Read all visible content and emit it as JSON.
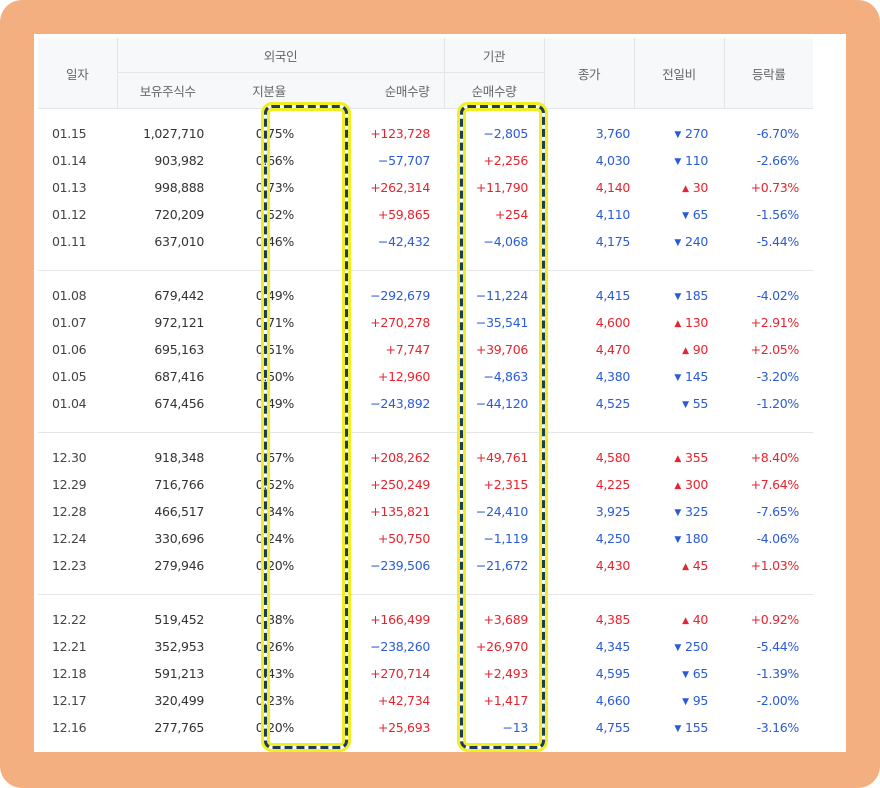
{
  "header": {
    "date": "일자",
    "foreign": "외국인",
    "institution": "기관",
    "close": "종가",
    "change": "전일비",
    "rate": "등락률",
    "holdings": "보유주식수",
    "share": "지분율",
    "foreign_net": "순매수량",
    "inst_net": "순매수량"
  },
  "colors": {
    "up": "#e8232d",
    "down": "#2a5bd7",
    "highlight_border": "#1c3d5a",
    "highlight_glow": "#f1ee24",
    "frame": "#f4af80"
  },
  "groups": [
    {
      "rows": [
        {
          "date": "01.15",
          "holdings": "1,027,710",
          "share": "0.75%",
          "foreign": "+123,728",
          "inst": "−2,805",
          "close": "3,760",
          "dir": "down",
          "change": "270",
          "rate": "-6.70%"
        },
        {
          "date": "01.14",
          "holdings": "903,982",
          "share": "0.66%",
          "foreign": "−57,707",
          "inst": "+2,256",
          "close": "4,030",
          "dir": "down",
          "change": "110",
          "rate": "-2.66%"
        },
        {
          "date": "01.13",
          "holdings": "998,888",
          "share": "0.73%",
          "foreign": "+262,314",
          "inst": "+11,790",
          "close": "4,140",
          "dir": "up",
          "change": "30",
          "rate": "+0.73%"
        },
        {
          "date": "01.12",
          "holdings": "720,209",
          "share": "0.52%",
          "foreign": "+59,865",
          "inst": "+254",
          "close": "4,110",
          "dir": "down",
          "change": "65",
          "rate": "-1.56%"
        },
        {
          "date": "01.11",
          "holdings": "637,010",
          "share": "0.46%",
          "foreign": "−42,432",
          "inst": "−4,068",
          "close": "4,175",
          "dir": "down",
          "change": "240",
          "rate": "-5.44%"
        }
      ]
    },
    {
      "rows": [
        {
          "date": "01.08",
          "holdings": "679,442",
          "share": "0.49%",
          "foreign": "−292,679",
          "inst": "−11,224",
          "close": "4,415",
          "dir": "down",
          "change": "185",
          "rate": "-4.02%"
        },
        {
          "date": "01.07",
          "holdings": "972,121",
          "share": "0.71%",
          "foreign": "+270,278",
          "inst": "−35,541",
          "close": "4,600",
          "dir": "up",
          "change": "130",
          "rate": "+2.91%"
        },
        {
          "date": "01.06",
          "holdings": "695,163",
          "share": "0.51%",
          "foreign": "+7,747",
          "inst": "+39,706",
          "close": "4,470",
          "dir": "up",
          "change": "90",
          "rate": "+2.05%"
        },
        {
          "date": "01.05",
          "holdings": "687,416",
          "share": "0.50%",
          "foreign": "+12,960",
          "inst": "−4,863",
          "close": "4,380",
          "dir": "down",
          "change": "145",
          "rate": "-3.20%"
        },
        {
          "date": "01.04",
          "holdings": "674,456",
          "share": "0.49%",
          "foreign": "−243,892",
          "inst": "−44,120",
          "close": "4,525",
          "dir": "down",
          "change": "55",
          "rate": "-1.20%"
        }
      ]
    },
    {
      "rows": [
        {
          "date": "12.30",
          "holdings": "918,348",
          "share": "0.67%",
          "foreign": "+208,262",
          "inst": "+49,761",
          "close": "4,580",
          "dir": "up",
          "change": "355",
          "rate": "+8.40%"
        },
        {
          "date": "12.29",
          "holdings": "716,766",
          "share": "0.52%",
          "foreign": "+250,249",
          "inst": "+2,315",
          "close": "4,225",
          "dir": "up",
          "change": "300",
          "rate": "+7.64%"
        },
        {
          "date": "12.28",
          "holdings": "466,517",
          "share": "0.34%",
          "foreign": "+135,821",
          "inst": "−24,410",
          "close": "3,925",
          "dir": "down",
          "change": "325",
          "rate": "-7.65%"
        },
        {
          "date": "12.24",
          "holdings": "330,696",
          "share": "0.24%",
          "foreign": "+50,750",
          "inst": "−1,119",
          "close": "4,250",
          "dir": "down",
          "change": "180",
          "rate": "-4.06%"
        },
        {
          "date": "12.23",
          "holdings": "279,946",
          "share": "0.20%",
          "foreign": "−239,506",
          "inst": "−21,672",
          "close": "4,430",
          "dir": "up",
          "change": "45",
          "rate": "+1.03%"
        }
      ]
    },
    {
      "rows": [
        {
          "date": "12.22",
          "holdings": "519,452",
          "share": "0.38%",
          "foreign": "+166,499",
          "inst": "+3,689",
          "close": "4,385",
          "dir": "up",
          "change": "40",
          "rate": "+0.92%"
        },
        {
          "date": "12.21",
          "holdings": "352,953",
          "share": "0.26%",
          "foreign": "−238,260",
          "inst": "+26,970",
          "close": "4,345",
          "dir": "down",
          "change": "250",
          "rate": "-5.44%"
        },
        {
          "date": "12.18",
          "holdings": "591,213",
          "share": "0.43%",
          "foreign": "+270,714",
          "inst": "+2,493",
          "close": "4,595",
          "dir": "down",
          "change": "65",
          "rate": "-1.39%"
        },
        {
          "date": "12.17",
          "holdings": "320,499",
          "share": "0.23%",
          "foreign": "+42,734",
          "inst": "+1,417",
          "close": "4,660",
          "dir": "down",
          "change": "95",
          "rate": "-2.00%"
        },
        {
          "date": "12.16",
          "holdings": "277,765",
          "share": "0.20%",
          "foreign": "+25,693",
          "inst": "−13",
          "close": "4,755",
          "dir": "down",
          "change": "155",
          "rate": "-3.16%"
        }
      ]
    }
  ]
}
